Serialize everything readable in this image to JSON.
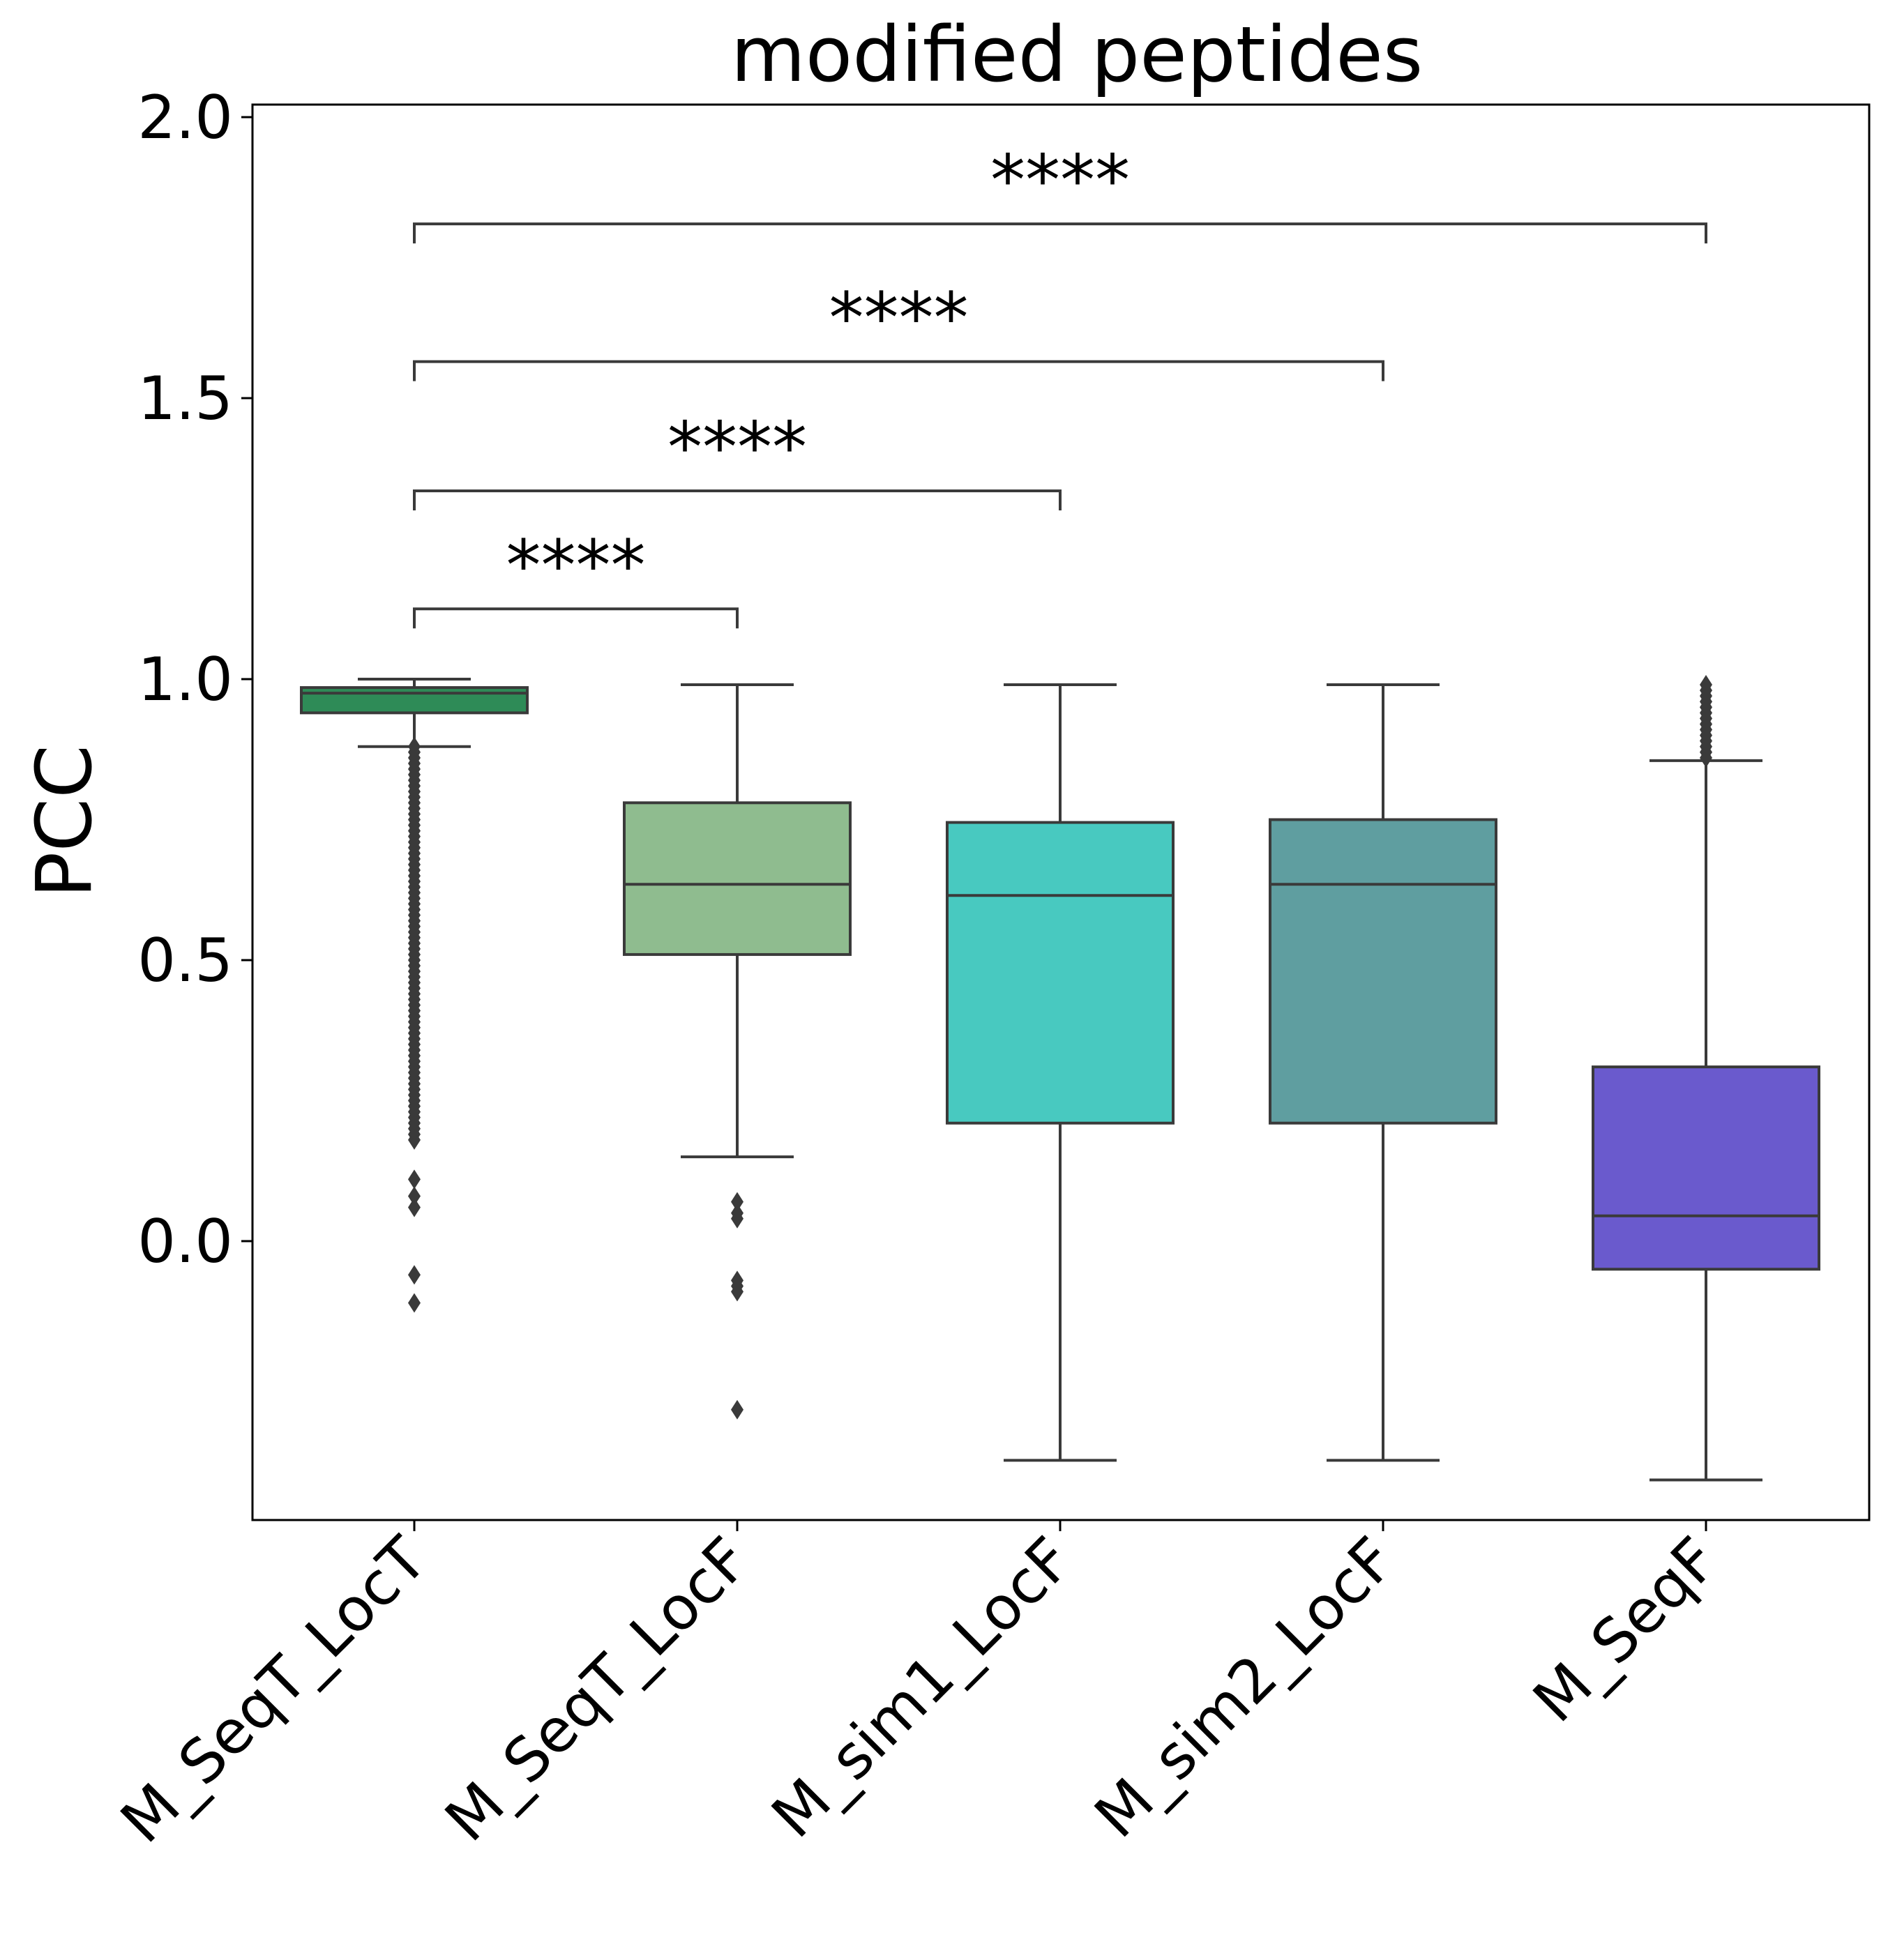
{
  "chart_data": {
    "type": "box",
    "title": "modified peptides",
    "xlabel": "",
    "ylabel": "PCC",
    "ylim": [
      -0.5,
      2.02
    ],
    "y_ticks": [
      "0.0",
      "0.5",
      "1.0",
      "1.5",
      "2.0"
    ],
    "grid": false,
    "categories": [
      "M_SeqT_LocT",
      "M_SeqT_LocF",
      "M_sim1_LocF",
      "M_sim2_LocF",
      "M_SeqF"
    ],
    "series": [
      {
        "color": "#2e8b57",
        "whislo": 0.88,
        "q1": 0.94,
        "med": 0.975,
        "q3": 0.985,
        "whishi": 1.0,
        "fliers": [
          0.88,
          0.87,
          0.86,
          0.85,
          0.84,
          0.83,
          0.82,
          0.81,
          0.8,
          0.79,
          0.78,
          0.77,
          0.76,
          0.75,
          0.74,
          0.73,
          0.72,
          0.71,
          0.7,
          0.69,
          0.68,
          0.67,
          0.66,
          0.65,
          0.64,
          0.63,
          0.62,
          0.61,
          0.6,
          0.59,
          0.58,
          0.57,
          0.56,
          0.55,
          0.54,
          0.53,
          0.52,
          0.51,
          0.5,
          0.49,
          0.48,
          0.47,
          0.46,
          0.45,
          0.44,
          0.43,
          0.42,
          0.41,
          0.4,
          0.39,
          0.38,
          0.37,
          0.36,
          0.35,
          0.34,
          0.33,
          0.32,
          0.31,
          0.3,
          0.29,
          0.28,
          0.27,
          0.26,
          0.25,
          0.24,
          0.23,
          0.22,
          0.21,
          0.2,
          0.19,
          0.18,
          0.11,
          0.08,
          0.06,
          -0.06,
          -0.11
        ]
      },
      {
        "color": "#8fbc8f",
        "whislo": 0.15,
        "q1": 0.51,
        "med": 0.635,
        "q3": 0.78,
        "whishi": 0.99,
        "fliers": [
          0.07,
          0.05,
          0.04,
          -0.07,
          -0.08,
          -0.09,
          -0.3
        ]
      },
      {
        "color": "#48c9c0",
        "whislo": -0.39,
        "q1": 0.21,
        "med": 0.615,
        "q3": 0.745,
        "whishi": 0.99,
        "fliers": []
      },
      {
        "color": "#5f9ea0",
        "whislo": -0.39,
        "q1": 0.21,
        "med": 0.635,
        "q3": 0.75,
        "whishi": 0.99,
        "fliers": []
      },
      {
        "color": "#6a5acd",
        "whislo": -0.425,
        "q1": -0.05,
        "med": 0.045,
        "q3": 0.31,
        "whishi": 0.855,
        "fliers": [
          0.86,
          0.87,
          0.88,
          0.89,
          0.9,
          0.91,
          0.92,
          0.93,
          0.94,
          0.95,
          0.96,
          0.97,
          0.98,
          0.99
        ]
      }
    ],
    "annotations": [
      {
        "from": "M_SeqT_LocT",
        "to": "M_SeqT_LocF",
        "y": 1.125,
        "text": "****"
      },
      {
        "from": "M_SeqT_LocT",
        "to": "M_sim1_LocF",
        "y": 1.335,
        "text": "****"
      },
      {
        "from": "M_SeqT_LocT",
        "to": "M_sim2_LocF",
        "y": 1.565,
        "text": "****"
      },
      {
        "from": "M_SeqT_LocT",
        "to": "M_SeqF",
        "y": 1.81,
        "text": "****"
      }
    ]
  }
}
